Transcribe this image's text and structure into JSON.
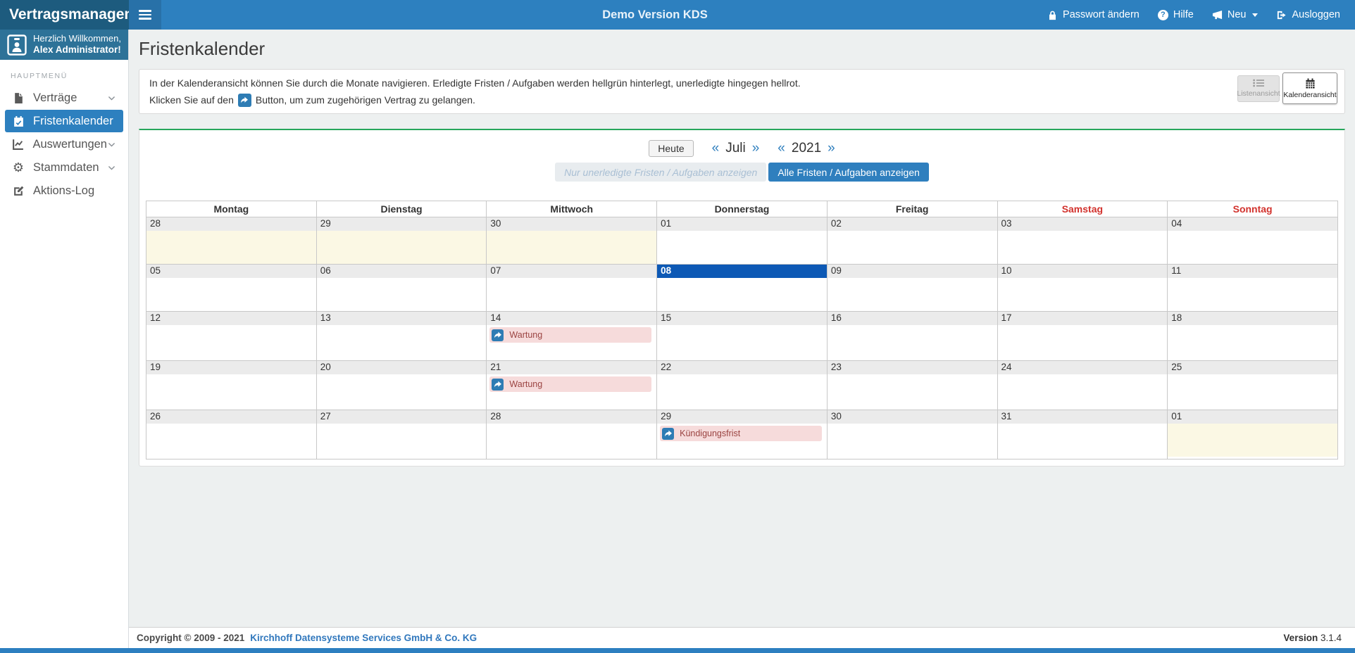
{
  "topbar": {
    "brand": "Vertragsmanagement",
    "title": "Demo Version KDS",
    "actions": [
      {
        "label": "Passwort ändern",
        "icon": "lock-icon"
      },
      {
        "label": "Hilfe",
        "icon": "help-icon"
      },
      {
        "label": "Neu",
        "icon": "megaphone-icon",
        "caret": true
      },
      {
        "label": "Ausloggen",
        "icon": "logout-icon"
      }
    ]
  },
  "sidebar": {
    "welcome_line1": "Herzlich Willkommen,",
    "welcome_line2": "Alex Administrator!",
    "section_label": "HAUPTMENÜ",
    "items": [
      {
        "label": "Verträge",
        "icon": "document-icon",
        "expandable": true,
        "active": false
      },
      {
        "label": "Fristenkalender",
        "icon": "calendar-icon",
        "expandable": false,
        "active": true
      },
      {
        "label": "Auswertungen",
        "icon": "chart-icon",
        "expandable": true,
        "active": false
      },
      {
        "label": "Stammdaten",
        "icon": "gear-icon",
        "expandable": true,
        "active": false
      },
      {
        "label": "Aktions-Log",
        "icon": "edit-icon",
        "expandable": false,
        "active": false
      }
    ]
  },
  "page": {
    "title": "Fristenkalender",
    "info_line1": "In der Kalenderansicht können Sie durch die Monate navigieren. Erledigte Fristen / Aufgaben werden hellgrün hinterlegt, unerledigte hingegen hellrot.",
    "info_line2_prefix": "Klicken Sie auf den",
    "info_line2_suffix": "Button, um zum zugehörigen Vertrag zu gelangen.",
    "view_toggle": {
      "list_label": "Listenansicht",
      "calendar_label": "Kalenderansicht"
    }
  },
  "calendar": {
    "today_button": "Heute",
    "prev_symbol": "«",
    "next_symbol": "»",
    "month": "Juli",
    "year": "2021",
    "filter_inactive": "Nur unerledigte Fristen / Aufgaben anzeigen",
    "filter_active": "Alle Fristen / Aufgaben anzeigen",
    "weekday_headers": [
      "Montag",
      "Dienstag",
      "Mittwoch",
      "Donnerstag",
      "Freitag",
      "Samstag",
      "Sonntag"
    ],
    "weeks": [
      [
        {
          "day": "28",
          "other_month": true
        },
        {
          "day": "29",
          "other_month": true
        },
        {
          "day": "30",
          "other_month": true
        },
        {
          "day": "01"
        },
        {
          "day": "02"
        },
        {
          "day": "03"
        },
        {
          "day": "04"
        }
      ],
      [
        {
          "day": "05"
        },
        {
          "day": "06"
        },
        {
          "day": "07"
        },
        {
          "day": "08",
          "today": true
        },
        {
          "day": "09"
        },
        {
          "day": "10"
        },
        {
          "day": "11"
        }
      ],
      [
        {
          "day": "12"
        },
        {
          "day": "13"
        },
        {
          "day": "14",
          "events": [
            {
              "label": "Wartung",
              "status": "unerledigt"
            }
          ]
        },
        {
          "day": "15"
        },
        {
          "day": "16"
        },
        {
          "day": "17"
        },
        {
          "day": "18"
        }
      ],
      [
        {
          "day": "19"
        },
        {
          "day": "20"
        },
        {
          "day": "21",
          "events": [
            {
              "label": "Wartung",
              "status": "unerledigt"
            }
          ]
        },
        {
          "day": "22"
        },
        {
          "day": "23"
        },
        {
          "day": "24"
        },
        {
          "day": "25"
        }
      ],
      [
        {
          "day": "26"
        },
        {
          "day": "27"
        },
        {
          "day": "28"
        },
        {
          "day": "29",
          "events": [
            {
              "label": "Kündigungsfrist",
              "status": "unerledigt"
            }
          ]
        },
        {
          "day": "30"
        },
        {
          "day": "31"
        },
        {
          "day": "01",
          "other_month": true
        }
      ]
    ]
  },
  "footer": {
    "copyright": "Copyright © 2009 - 2021",
    "company": "Kirchhoff Datensysteme Services GmbH & Co. KG",
    "version_label": "Version",
    "version_value": "3.1.4"
  },
  "colors": {
    "topbar_blue": "#2d80bf",
    "brand_dark_blue": "#1d5b7e",
    "user_panel_blue": "#2d7298",
    "active_item_blue": "#2d80bf",
    "today_blue": "#0d59b5",
    "weekend_red": "#d2322d",
    "panel_green_border": "#26a65b",
    "event_pink_bg": "#f6dbdb",
    "event_text_red": "#9b4442",
    "other_month_cream": "#fbf8e4",
    "link_blue": "#3178bd"
  }
}
